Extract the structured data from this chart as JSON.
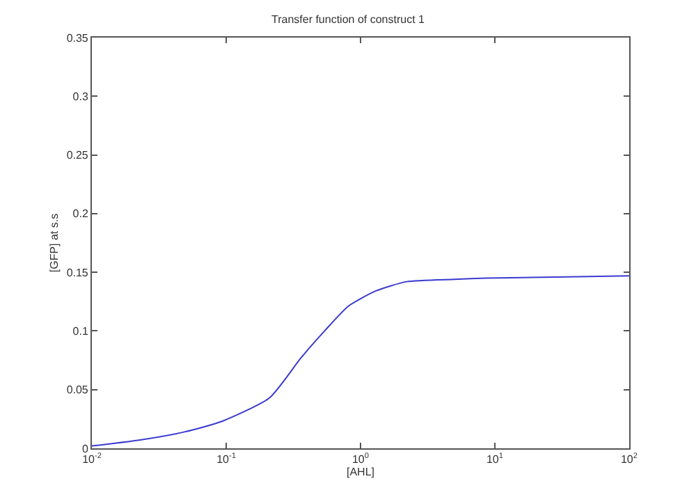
{
  "chart_data": {
    "type": "line",
    "title": "Transfer function of construct 1",
    "xlabel": "[AHL]",
    "ylabel": "[GFP] at s.s",
    "log": "x",
    "x": [
      0.01,
      0.0224,
      0.049,
      0.093,
      0.21,
      0.36,
      0.54,
      0.81,
      1.29,
      2.2,
      5,
      8.7,
      29,
      100
    ],
    "series": [
      {
        "color": "#3a3ad0",
        "values": [
          0.002,
          0.007,
          0.014,
          0.023,
          0.043,
          0.077,
          0.1,
          0.121,
          0.134,
          0.142,
          0.144,
          0.145,
          0.146,
          0.147
        ]
      }
    ],
    "xlim": [
      0.01,
      100
    ],
    "xticks": [
      {
        "value": 0.01,
        "label": "10$^{-2}$"
      },
      {
        "value": 0.1,
        "label": "10$^{-1}$"
      },
      {
        "value": 1,
        "label": "10$^{0}$"
      },
      {
        "value": 10,
        "label": "10$^{1}$"
      },
      {
        "value": 100,
        "label": "10$^{2}$"
      }
    ],
    "ylim": [
      0,
      0.35
    ],
    "yticks": [
      0,
      0.05,
      0.1,
      0.15,
      0.2,
      0.25,
      0.3,
      0.35
    ],
    "grid": false,
    "legend": false,
    "marker": "none",
    "line_style": "solid"
  }
}
